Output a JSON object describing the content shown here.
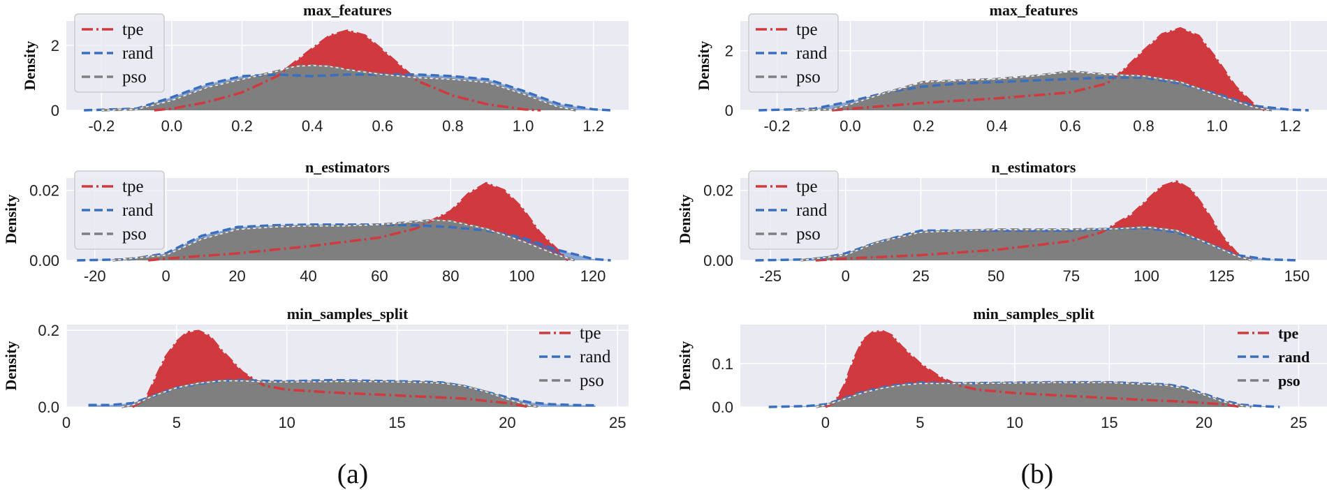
{
  "colors": {
    "tpe": "#d0393e",
    "rand": "#3a6fbf",
    "pso": "#7f7f7f",
    "bg": "#eaeaf2",
    "grid": "#ffffff"
  },
  "captions": [
    "(a)",
    "(b)"
  ],
  "chart_data": [
    {
      "panel": "a",
      "type": "area",
      "title": "max_features",
      "ylabel": "Density",
      "xlim": [
        -0.3,
        1.3
      ],
      "ylim": [
        0,
        2.75
      ],
      "xticks": [
        -0.2,
        0.0,
        0.2,
        0.4,
        0.6,
        0.8,
        1.0,
        1.2
      ],
      "xtick_labels": [
        "-0.2",
        "0.0",
        "0.2",
        "0.4",
        "0.6",
        "0.8",
        "1.0",
        "1.2"
      ],
      "yticks": [
        0,
        2
      ],
      "ytick_labels": [
        "0",
        "2"
      ],
      "legend": {
        "position": "upper-left",
        "bold": false
      },
      "series": [
        {
          "name": "tpe",
          "label": "tpe",
          "x": [
            -0.05,
            0.0,
            0.1,
            0.2,
            0.3,
            0.4,
            0.45,
            0.5,
            0.55,
            0.6,
            0.7,
            0.8,
            0.9,
            1.0,
            1.05
          ],
          "y": [
            0,
            0.05,
            0.25,
            0.55,
            1.05,
            1.9,
            2.3,
            2.45,
            2.3,
            1.85,
            0.9,
            0.45,
            0.18,
            0.03,
            0
          ]
        },
        {
          "name": "rand",
          "label": "rand",
          "x": [
            -0.25,
            -0.1,
            0.0,
            0.1,
            0.2,
            0.3,
            0.4,
            0.5,
            0.6,
            0.7,
            0.8,
            0.9,
            1.0,
            1.1,
            1.2,
            1.25
          ],
          "y": [
            0,
            0.05,
            0.4,
            0.8,
            1.05,
            1.1,
            1.05,
            1.1,
            1.1,
            1.1,
            1.05,
            0.95,
            0.6,
            0.2,
            0.03,
            0
          ]
        },
        {
          "name": "pso",
          "label": "pso",
          "x": [
            -0.2,
            -0.1,
            0.0,
            0.1,
            0.2,
            0.3,
            0.35,
            0.4,
            0.45,
            0.5,
            0.6,
            0.7,
            0.8,
            0.9,
            1.0,
            1.1,
            1.15
          ],
          "y": [
            0,
            0.03,
            0.3,
            0.7,
            0.95,
            1.2,
            1.35,
            1.38,
            1.35,
            1.25,
            1.1,
            1.0,
            0.95,
            0.85,
            0.5,
            0.1,
            0
          ]
        }
      ]
    },
    {
      "panel": "a",
      "type": "area",
      "title": "n_estimators",
      "ylabel": "Density",
      "xlim": [
        -28,
        130
      ],
      "ylim": [
        0,
        0.0235
      ],
      "xticks": [
        -20,
        0,
        20,
        40,
        60,
        80,
        100,
        120
      ],
      "xtick_labels": [
        "-20",
        "0",
        "20",
        "40",
        "60",
        "80",
        "100",
        "120"
      ],
      "yticks": [
        0,
        0.02
      ],
      "ytick_labels": [
        "0.00",
        "0.02"
      ],
      "legend": {
        "position": "upper-left",
        "bold": false
      },
      "series": [
        {
          "name": "tpe",
          "label": "tpe",
          "x": [
            -5,
            0,
            20,
            40,
            60,
            70,
            80,
            85,
            90,
            95,
            100,
            105,
            110,
            113
          ],
          "y": [
            0,
            0.0005,
            0.002,
            0.004,
            0.0065,
            0.009,
            0.014,
            0.019,
            0.022,
            0.02,
            0.015,
            0.008,
            0.003,
            0
          ]
        },
        {
          "name": "rand",
          "label": "rand",
          "x": [
            -25,
            -10,
            0,
            10,
            20,
            30,
            40,
            50,
            60,
            70,
            80,
            90,
            100,
            110,
            120,
            125
          ],
          "y": [
            0,
            0.0003,
            0.002,
            0.007,
            0.0095,
            0.01,
            0.0102,
            0.0102,
            0.0102,
            0.01,
            0.0095,
            0.0085,
            0.0065,
            0.003,
            0.0004,
            0
          ]
        },
        {
          "name": "pso",
          "label": "pso",
          "x": [
            -15,
            0,
            10,
            20,
            30,
            40,
            50,
            60,
            70,
            75,
            80,
            90,
            100,
            110,
            115
          ],
          "y": [
            0,
            0.0015,
            0.006,
            0.0088,
            0.0095,
            0.0098,
            0.0098,
            0.0102,
            0.011,
            0.0115,
            0.0112,
            0.009,
            0.0055,
            0.0015,
            0
          ]
        }
      ]
    },
    {
      "panel": "a",
      "type": "area",
      "title": "min_samples_split",
      "ylabel": "Density",
      "xlim": [
        0,
        25.5
      ],
      "ylim": [
        0,
        0.215
      ],
      "xticks": [
        0,
        5,
        10,
        15,
        20,
        25
      ],
      "xtick_labels": [
        "0",
        "5",
        "10",
        "15",
        "20",
        "25"
      ],
      "yticks": [
        0,
        0.2
      ],
      "ytick_labels": [
        "0.0",
        "0.2"
      ],
      "legend": {
        "position": "upper-right",
        "bold": false
      },
      "series": [
        {
          "name": "tpe",
          "label": "tpe",
          "x": [
            3,
            3.6,
            4,
            4.5,
            5,
            5.5,
            6,
            6.5,
            7,
            8,
            9,
            10,
            12,
            15,
            18,
            20,
            21
          ],
          "y": [
            0,
            0.02,
            0.07,
            0.13,
            0.17,
            0.195,
            0.198,
            0.185,
            0.15,
            0.09,
            0.055,
            0.045,
            0.038,
            0.03,
            0.022,
            0.01,
            0
          ]
        },
        {
          "name": "rand",
          "label": "rand",
          "x": [
            1,
            2,
            3,
            4,
            5,
            6,
            7,
            8,
            9,
            10,
            12,
            14,
            16,
            17,
            18,
            19,
            20,
            21,
            22,
            23,
            24
          ],
          "y": [
            0.005,
            0.005,
            0.01,
            0.03,
            0.05,
            0.06,
            0.068,
            0.07,
            0.068,
            0.067,
            0.07,
            0.068,
            0.066,
            0.064,
            0.055,
            0.04,
            0.025,
            0.012,
            0.007,
            0.005,
            0.004
          ]
        },
        {
          "name": "pso",
          "label": "pso",
          "x": [
            2.5,
            3,
            4,
            5,
            6,
            7,
            8,
            9,
            10,
            12,
            14,
            16,
            17,
            18,
            19,
            20,
            21,
            21.5
          ],
          "y": [
            0,
            0.005,
            0.03,
            0.05,
            0.062,
            0.068,
            0.068,
            0.065,
            0.065,
            0.066,
            0.066,
            0.064,
            0.062,
            0.055,
            0.04,
            0.02,
            0.004,
            0
          ]
        }
      ]
    },
    {
      "panel": "b",
      "type": "area",
      "title": "max_features",
      "ylabel": "Density",
      "xlim": [
        -0.3,
        1.3
      ],
      "ylim": [
        0,
        3.0
      ],
      "xticks": [
        -0.2,
        0.0,
        0.2,
        0.4,
        0.6,
        0.8,
        1.0,
        1.2
      ],
      "xtick_labels": [
        "-0.2",
        "0.0",
        "0.2",
        "0.4",
        "0.6",
        "0.8",
        "1.0",
        "1.2"
      ],
      "yticks": [
        0,
        2
      ],
      "ytick_labels": [
        "0",
        "2"
      ],
      "legend": {
        "position": "upper-left",
        "bold": false
      },
      "series": [
        {
          "name": "tpe",
          "label": "tpe",
          "x": [
            -0.05,
            0.0,
            0.2,
            0.4,
            0.6,
            0.7,
            0.75,
            0.8,
            0.85,
            0.9,
            0.95,
            1.0,
            1.05,
            1.1,
            1.13
          ],
          "y": [
            0,
            0.05,
            0.25,
            0.4,
            0.6,
            0.9,
            1.4,
            2.0,
            2.55,
            2.75,
            2.5,
            1.7,
            0.8,
            0.2,
            0
          ]
        },
        {
          "name": "rand",
          "label": "rand",
          "x": [
            -0.25,
            -0.1,
            0.0,
            0.1,
            0.2,
            0.3,
            0.4,
            0.5,
            0.6,
            0.7,
            0.8,
            0.9,
            1.0,
            1.1,
            1.2,
            1.25
          ],
          "y": [
            0,
            0.05,
            0.3,
            0.6,
            0.8,
            0.9,
            0.95,
            1.0,
            1.05,
            1.1,
            1.1,
            0.9,
            0.55,
            0.15,
            0.02,
            0
          ]
        },
        {
          "name": "pso",
          "label": "pso",
          "x": [
            -0.15,
            -0.05,
            0.0,
            0.1,
            0.2,
            0.3,
            0.4,
            0.5,
            0.6,
            0.7,
            0.8,
            0.9,
            1.0,
            1.1,
            1.15
          ],
          "y": [
            0,
            0.03,
            0.2,
            0.6,
            0.95,
            1.0,
            1.05,
            1.15,
            1.3,
            1.2,
            1.15,
            0.95,
            0.5,
            0.1,
            0
          ]
        }
      ]
    },
    {
      "panel": "b",
      "type": "area",
      "title": "n_estimators",
      "ylabel": "Density",
      "xlim": [
        -35,
        160
      ],
      "ylim": [
        0,
        0.0235
      ],
      "xticks": [
        -25,
        0,
        25,
        50,
        75,
        100,
        125,
        150
      ],
      "xtick_labels": [
        "-25",
        "0",
        "25",
        "50",
        "75",
        "100",
        "125",
        "150"
      ],
      "yticks": [
        0,
        0.02
      ],
      "ytick_labels": [
        "0.00",
        "0.02"
      ],
      "legend": {
        "position": "upper-left",
        "bold": false
      },
      "series": [
        {
          "name": "tpe",
          "label": "tpe",
          "x": [
            -10,
            0,
            25,
            50,
            75,
            85,
            95,
            100,
            105,
            110,
            115,
            120,
            125,
            130,
            135
          ],
          "y": [
            0,
            0.0005,
            0.0015,
            0.003,
            0.0055,
            0.008,
            0.013,
            0.017,
            0.021,
            0.0225,
            0.02,
            0.014,
            0.007,
            0.002,
            0
          ]
        },
        {
          "name": "rand",
          "label": "rand",
          "x": [
            -30,
            -10,
            0,
            10,
            25,
            50,
            75,
            90,
            100,
            110,
            120,
            130,
            140,
            150
          ],
          "y": [
            0,
            0.0003,
            0.002,
            0.005,
            0.0085,
            0.0085,
            0.0085,
            0.009,
            0.0092,
            0.008,
            0.005,
            0.0015,
            0.0003,
            0
          ]
        },
        {
          "name": "pso",
          "label": "pso",
          "x": [
            -15,
            0,
            10,
            25,
            50,
            75,
            90,
            100,
            110,
            120,
            130,
            135
          ],
          "y": [
            0,
            0.0015,
            0.005,
            0.008,
            0.0088,
            0.0088,
            0.009,
            0.0095,
            0.0085,
            0.005,
            0.0012,
            0
          ]
        }
      ]
    },
    {
      "panel": "b",
      "type": "area",
      "title": "min_samples_split",
      "ylabel": "Density",
      "xlim": [
        -4.5,
        26.5
      ],
      "ylim": [
        0,
        0.19
      ],
      "xticks": [
        0,
        5,
        10,
        15,
        20,
        25
      ],
      "xtick_labels": [
        "0",
        "5",
        "10",
        "15",
        "20",
        "25"
      ],
      "yticks": [
        0,
        0.1
      ],
      "ytick_labels": [
        "0.0",
        "0.1"
      ],
      "legend": {
        "position": "upper-right",
        "bold": true
      },
      "series": [
        {
          "name": "tpe",
          "label": "tpe",
          "x": [
            0,
            0.5,
            1,
            1.5,
            2,
            2.5,
            3,
            3.5,
            4,
            5,
            6,
            7,
            8,
            10,
            13,
            16,
            19,
            21,
            22
          ],
          "y": [
            0,
            0.01,
            0.05,
            0.11,
            0.155,
            0.172,
            0.175,
            0.165,
            0.14,
            0.1,
            0.07,
            0.05,
            0.04,
            0.032,
            0.025,
            0.018,
            0.012,
            0.006,
            0
          ]
        },
        {
          "name": "rand",
          "label": "rand",
          "x": [
            -3,
            -1,
            0,
            1,
            2,
            3,
            4,
            5,
            6,
            8,
            10,
            12,
            15,
            18,
            19,
            20,
            21,
            22,
            23,
            24
          ],
          "y": [
            0,
            0.002,
            0.006,
            0.02,
            0.035,
            0.045,
            0.052,
            0.056,
            0.055,
            0.055,
            0.056,
            0.057,
            0.057,
            0.052,
            0.045,
            0.03,
            0.015,
            0.005,
            0.002,
            0
          ]
        },
        {
          "name": "pso",
          "label": "pso",
          "x": [
            -0.5,
            0,
            1,
            2,
            3,
            4,
            5,
            6,
            8,
            10,
            12,
            15,
            18,
            19,
            20,
            21,
            22,
            22.5
          ],
          "y": [
            0,
            0.004,
            0.018,
            0.033,
            0.043,
            0.05,
            0.054,
            0.054,
            0.054,
            0.055,
            0.056,
            0.056,
            0.05,
            0.042,
            0.028,
            0.012,
            0.003,
            0
          ]
        }
      ]
    }
  ]
}
